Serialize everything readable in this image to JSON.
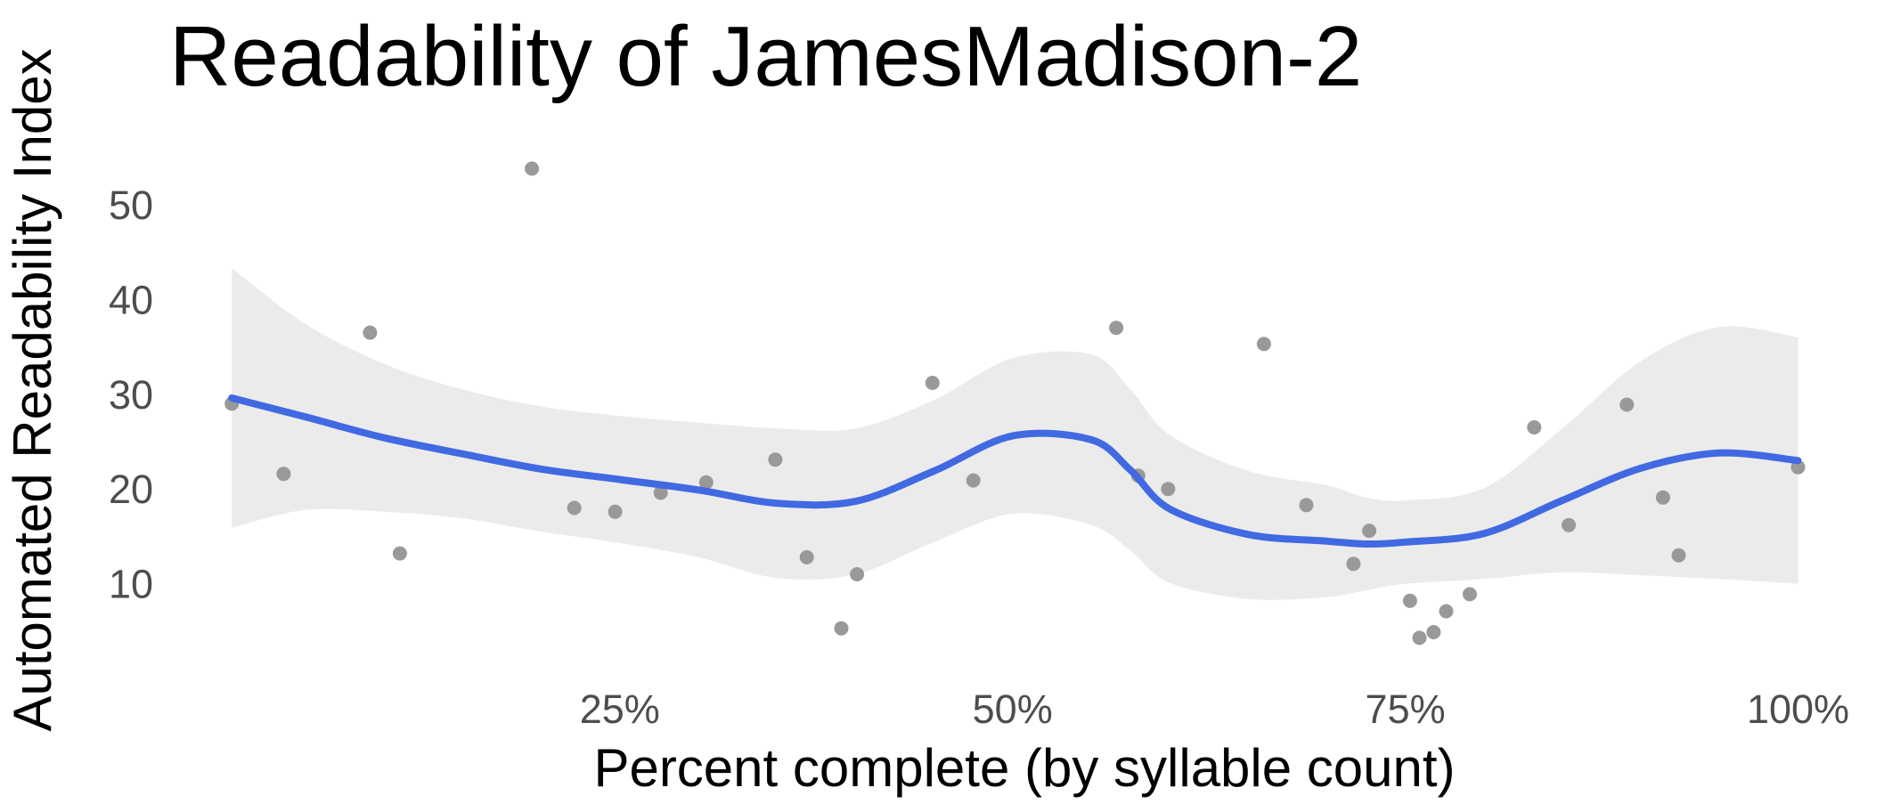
{
  "chart_data": {
    "type": "scatter",
    "title": "Readability of JamesMadison-2",
    "xlabel": "Percent complete (by syllable count)",
    "ylabel": "Automated Readability Index",
    "x_unit": "percent",
    "xlim": [
      0.4,
      101.5
    ],
    "ylim": [
      0.2,
      57.5
    ],
    "x_ticks": [
      25,
      50,
      75,
      100
    ],
    "x_tick_labels": [
      "25%",
      "50%",
      "75%",
      "100%"
    ],
    "y_ticks": [
      10,
      20,
      30,
      40,
      50
    ],
    "y_tick_labels": [
      "10",
      "20",
      "30",
      "40",
      "50"
    ],
    "grid": false,
    "legend": "none",
    "colors": {
      "points": "#999999",
      "smooth_line": "#4169e1",
      "confidence_band": "#ebebeb"
    },
    "points": {
      "x": [
        0.3,
        3.6,
        9.1,
        11.0,
        19.4,
        22.1,
        24.7,
        27.6,
        30.5,
        34.9,
        36.9,
        39.1,
        40.1,
        44.9,
        47.5,
        56.6,
        58.0,
        59.9,
        66.0,
        68.7,
        71.7,
        72.7,
        75.3,
        75.9,
        76.8,
        77.6,
        79.1,
        83.2,
        85.4,
        89.1,
        91.4,
        92.4,
        100.0
      ],
      "y": [
        29.0,
        21.6,
        36.5,
        13.2,
        53.8,
        18.0,
        17.6,
        19.6,
        20.7,
        23.1,
        12.8,
        5.3,
        11.0,
        31.2,
        20.9,
        37.0,
        21.4,
        20.0,
        35.3,
        18.3,
        12.1,
        15.6,
        8.2,
        4.3,
        4.9,
        7.1,
        8.9,
        26.5,
        16.2,
        28.9,
        19.1,
        13.0,
        22.3
      ]
    },
    "smooth": {
      "method": "loess",
      "x": [
        0.3,
        5,
        10,
        15,
        20,
        25,
        30,
        35,
        40,
        45,
        50,
        55,
        57.5,
        60,
        65,
        70,
        72.5,
        75,
        80,
        85,
        90,
        95,
        100
      ],
      "y": [
        29.6,
        27.6,
        25.4,
        23.7,
        22.1,
        21.0,
        19.9,
        18.5,
        18.7,
        21.9,
        25.6,
        25.2,
        22.0,
        17.9,
        15.2,
        14.5,
        14.2,
        14.4,
        15.3,
        18.8,
        22.2,
        23.8,
        23.0
      ],
      "lower": [
        15.9,
        17.8,
        17.6,
        16.9,
        15.5,
        14.3,
        12.8,
        10.6,
        11.0,
        14.4,
        17.4,
        16.2,
        13.5,
        10.1,
        8.4,
        8.6,
        9.3,
        10.0,
        10.5,
        11.2,
        10.9,
        10.5,
        10.0
      ],
      "upper": [
        43.3,
        37.4,
        33.2,
        30.5,
        28.7,
        27.7,
        27.0,
        26.4,
        26.4,
        29.4,
        33.8,
        34.2,
        30.5,
        25.7,
        21.9,
        20.4,
        19.1,
        18.8,
        20.1,
        26.4,
        33.5,
        37.1,
        36.0
      ]
    }
  }
}
